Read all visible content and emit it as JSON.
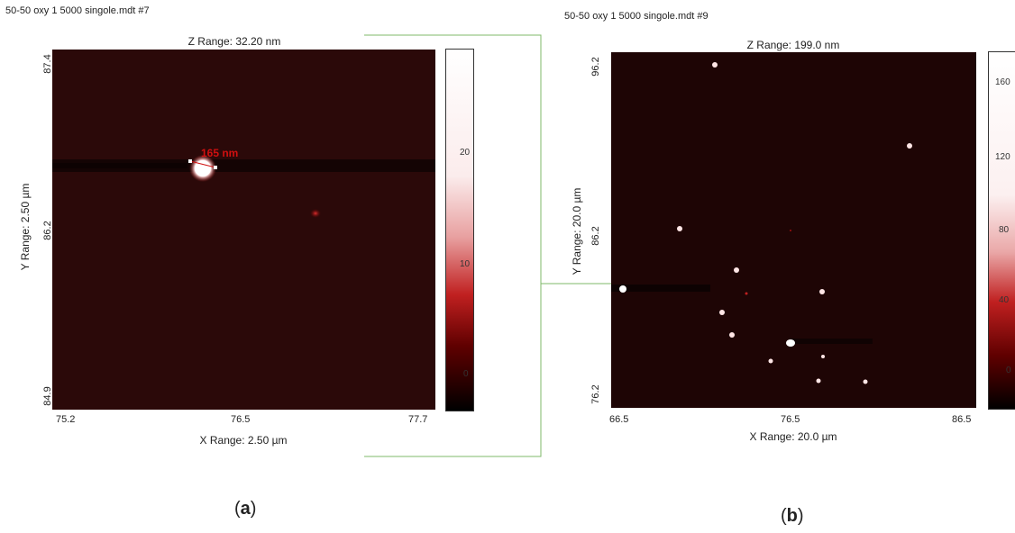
{
  "panel_a": {
    "file_title": "50-50 oxy 1 5000 singole.mdt #7",
    "z_range": "Z Range:  32.20 nm",
    "y_range": "Y Range:  2.50 µm",
    "x_range": "X Range:  2.50 µm",
    "y_ticks": [
      "87.4",
      "86.2",
      "84.9"
    ],
    "x_ticks": [
      "75.2",
      "76.5",
      "77.7"
    ],
    "colorbar_ticks": [
      "20",
      "10",
      "0"
    ],
    "measurement": "165 nm",
    "label_open": "(",
    "label_letter": "a",
    "label_close": ")"
  },
  "panel_b": {
    "file_title": "50-50 oxy 1 5000 singole.mdt #9",
    "z_range": "Z Range:  199.0 nm",
    "y_range": "Y Range:  20.0 µm",
    "x_range": "X Range:  20.0 µm",
    "y_ticks": [
      "96.2",
      "86.2",
      "76.2"
    ],
    "x_ticks": [
      "66.5",
      "76.5",
      "86.5"
    ],
    "colorbar_ticks": [
      "160",
      "120",
      "80",
      "40",
      "0"
    ],
    "label_open": "(",
    "label_letter": "b",
    "label_close": ")"
  },
  "colors": {
    "plot_background": "#2a0808",
    "connector": "#7fb86a",
    "measurement": "#d01010"
  }
}
